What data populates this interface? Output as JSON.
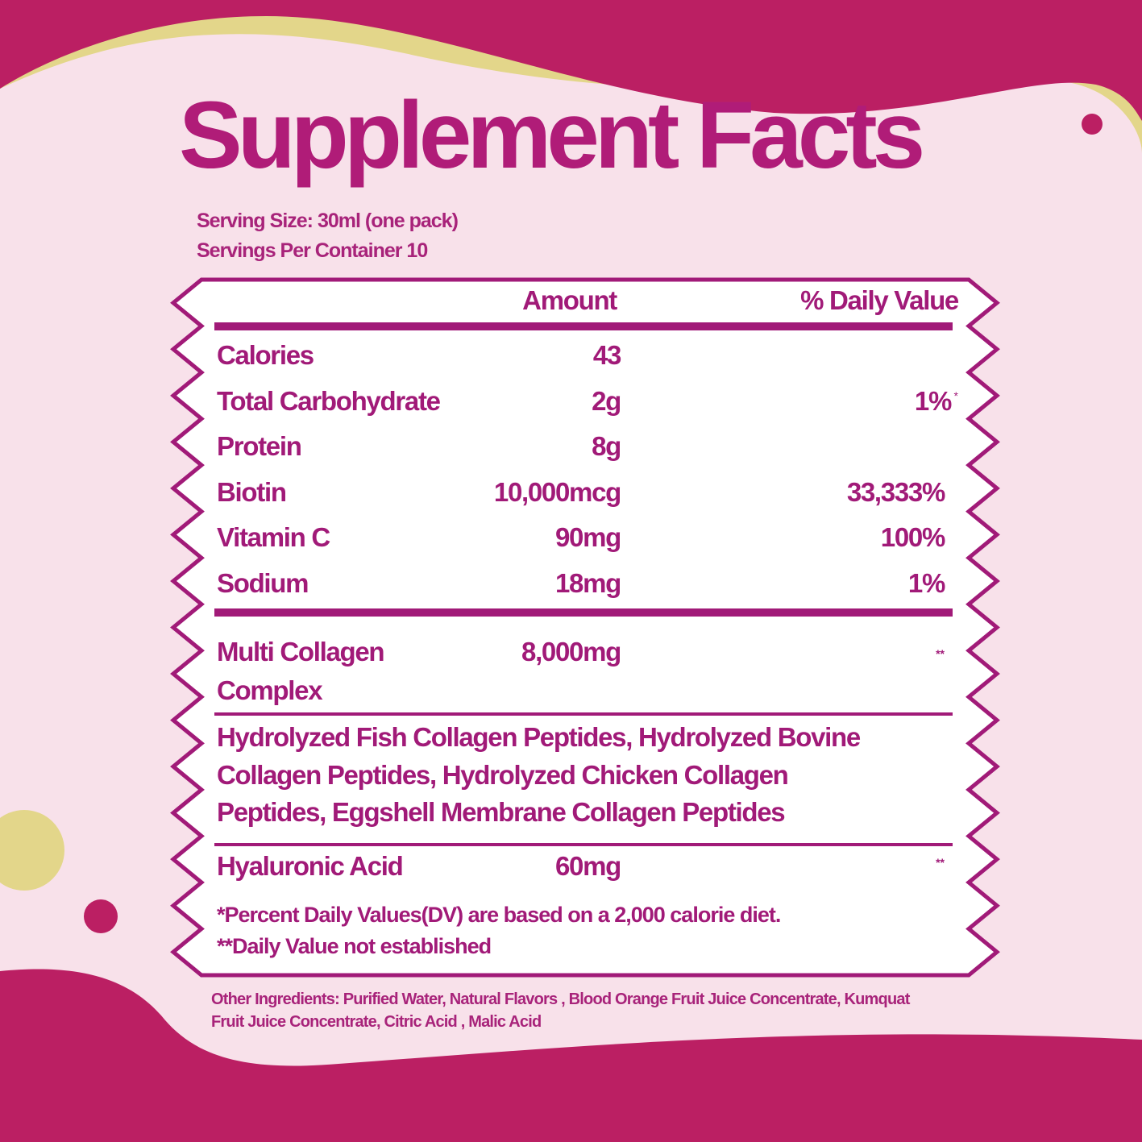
{
  "colors": {
    "background": "#f8e1ea",
    "accent_dark": "#bb1f63",
    "accent_yellow": "#e3d68a",
    "text": "#a11a78"
  },
  "title": "Supplement Facts",
  "serving_size": "Serving Size: 30ml (one pack)",
  "servings_per_container": "Servings Per Container 10",
  "table": {
    "headers": {
      "amount": "Amount",
      "daily_value": "% Daily Value"
    },
    "rows": [
      {
        "label": "Calories",
        "amount": "43",
        "dv": ""
      },
      {
        "label": "Total Carbohydrate",
        "amount": "2g",
        "dv": "1%",
        "dv_mark": "*"
      },
      {
        "label": "Protein",
        "amount": "8g",
        "dv": ""
      },
      {
        "label": "Biotin",
        "amount": "10,000mcg",
        "dv": "33,333%"
      },
      {
        "label": "Vitamin C",
        "amount": "90mg",
        "dv": "100%"
      },
      {
        "label": "Sodium",
        "amount": "18mg",
        "dv": "1%"
      }
    ],
    "collagen": {
      "label_line1": "Multi Collagen",
      "label_line2": "Complex",
      "amount": "8,000mg",
      "dv": "**"
    },
    "collagen_sources": [
      "Hydrolyzed  Fish Collagen Peptides, Hydrolyzed Bovine",
      "Collagen Peptides, Hydrolyzed Chicken Collagen",
      "Peptides, Eggshell Membrane Collagen Peptides"
    ],
    "hyaluronic": {
      "label": "Hyaluronic Acid",
      "amount": "60mg",
      "dv": "**"
    },
    "footnotes": [
      "*Percent Daily Values(DV) are based on a 2,000 calorie diet.",
      "**Daily Value not established"
    ]
  },
  "other_ingredients": [
    "Other Ingredients: Purified Water, Natural Flavors , Blood Orange Fruit Juice Concentrate,  Kumquat",
    "Fruit Juice Concentrate, Citric Acid , Malic Acid"
  ]
}
